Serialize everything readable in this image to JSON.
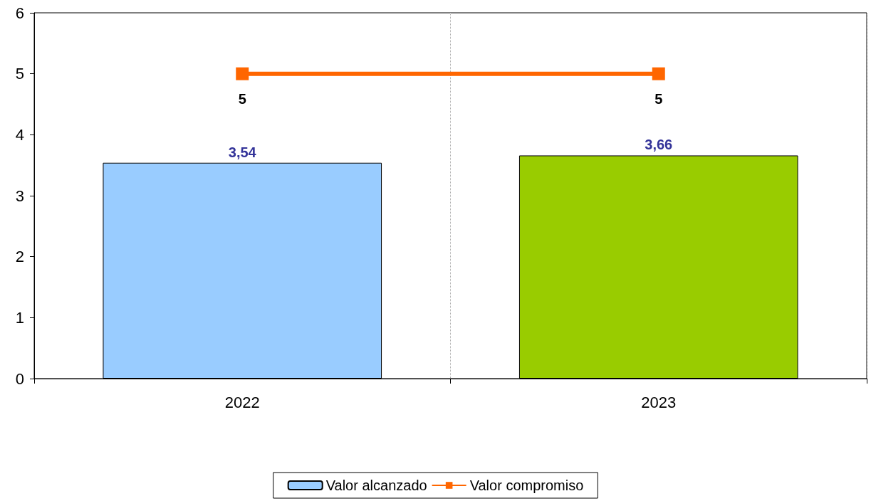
{
  "chart_data": {
    "type": "bar",
    "categories": [
      "2022",
      "2023"
    ],
    "series": [
      {
        "name": "Valor alcanzado",
        "colors": [
          "#99ccff",
          "#99cc00"
        ],
        "values": [
          3.54,
          3.66
        ],
        "value_labels": [
          "3,54",
          "3,66"
        ]
      },
      {
        "name": "Valor compromiso",
        "type": "line",
        "color": "#ff6600",
        "values": [
          5,
          5
        ],
        "value_labels": [
          "5",
          "5"
        ],
        "marker": "square"
      }
    ],
    "ylim": [
      0,
      6
    ],
    "yticks": [
      0,
      1,
      2,
      3,
      4,
      5,
      6
    ],
    "grid": "x",
    "legend": "bottom"
  }
}
